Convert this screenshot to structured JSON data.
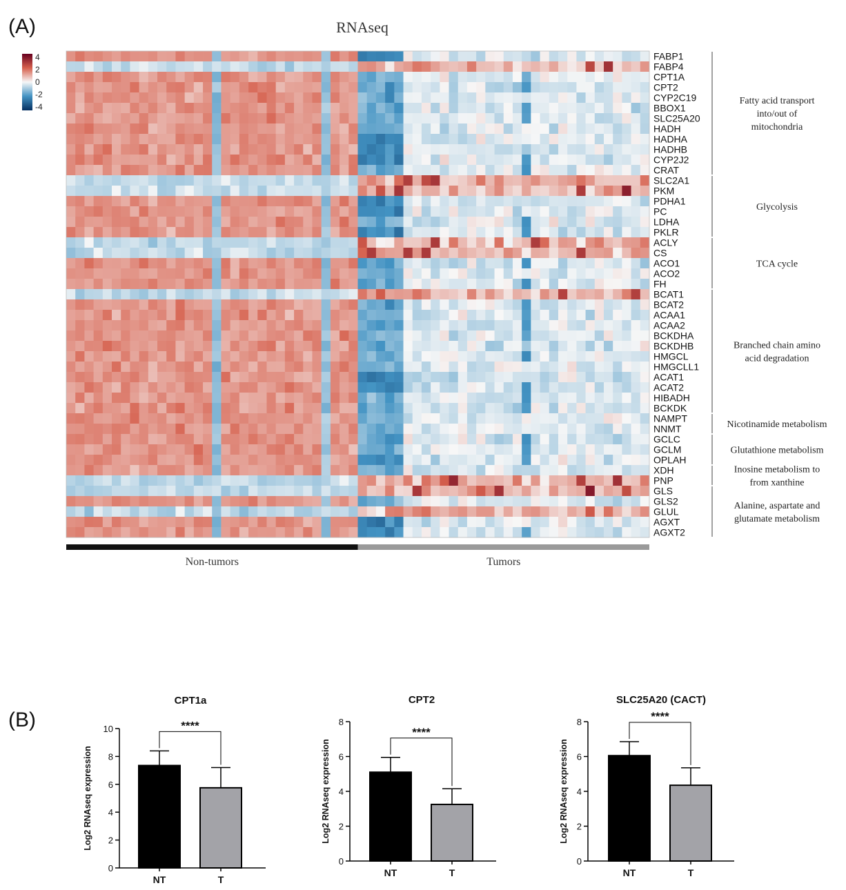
{
  "panel_labels": {
    "a": "(A)",
    "b": "(B)"
  },
  "chart_data": [
    {
      "type": "heatmap",
      "title": "RNAseq",
      "color_scale": {
        "ticks": [
          "4",
          "2",
          "0",
          "-2",
          "-4"
        ],
        "colors": {
          "max": "#67001f",
          "high": "#d6604d",
          "mid": "#f7f7f7",
          "low": "#4393c3",
          "min": "#053061"
        }
      },
      "genes": [
        "FABP1",
        "FABP4",
        "CPT1A",
        "CPT2",
        "CYP2C19",
        "BBOX1",
        "SLC25A20",
        "HADH",
        "HADHA",
        "HADHB",
        "CYP2J2",
        "CRAT",
        "SLC2A1",
        "PKM",
        "PDHA1",
        "PC",
        "LDHA",
        "PKLR",
        "ACLY",
        "CS",
        "ACO1",
        "ACO2",
        "FH",
        "BCAT1",
        "BCAT2",
        "ACAA1",
        "ACAA2",
        "BCKDHA",
        "BCKDHB",
        "HMGCL",
        "HMGCLL1",
        "ACAT1",
        "ACAT2",
        "HIBADH",
        "BCKDK",
        "NAMPT",
        "NNMT",
        "GCLC",
        "GCLM",
        "OPLAH",
        "XDH",
        "PNP",
        "GLS",
        "GLS2",
        "GLUL",
        "AGXT",
        "AGXT2"
      ],
      "groups": [
        {
          "name": "Non-tumors",
          "columns": 32,
          "color": "#111111"
        },
        {
          "name": "Tumors",
          "columns": 32,
          "color": "#9a9a9a"
        }
      ],
      "row_expression": {
        "up_in_tumors": [
          "FABP4",
          "SLC2A1",
          "PKM",
          "ACLY",
          "CS",
          "BCAT1",
          "PNP",
          "GLS",
          "GLUL"
        ],
        "strongly_down_in_tumors": [
          "FABP1",
          "CYP2J2",
          "HADHA",
          "HADHB",
          "PDHA1",
          "PC",
          "PKLR",
          "ACAT1",
          "ACAT2",
          "AGXT",
          "AGXT2",
          "OPLAH"
        ]
      },
      "pathways": [
        {
          "lines": [
            "Fatty acid transport",
            "into/out of",
            "mitochondria"
          ],
          "from": 0,
          "to": 11
        },
        {
          "lines": [
            "Glycolysis"
          ],
          "from": 12,
          "to": 17
        },
        {
          "lines": [
            "TCA cycle"
          ],
          "from": 18,
          "to": 22
        },
        {
          "lines": [
            "Branched chain amino",
            "acid degradation"
          ],
          "from": 23,
          "to": 34
        },
        {
          "lines": [
            "Nicotinamide metabolism"
          ],
          "from": 35,
          "to": 36
        },
        {
          "lines": [
            "Glutathione metabolism"
          ],
          "from": 37,
          "to": 39
        },
        {
          "lines": [
            "Inosine metabolism to",
            "from xanthine"
          ],
          "from": 40,
          "to": 41
        },
        {
          "lines": [
            "Alanine, aspartate and",
            "glutamate metabolism"
          ],
          "from": 42,
          "to": 46
        }
      ]
    },
    {
      "type": "bar",
      "title": "CPT1a",
      "categories": [
        "NT",
        "T"
      ],
      "values": [
        7.35,
        5.75
      ],
      "errors": [
        1.05,
        1.45
      ],
      "colors": [
        "#000000",
        "#a3a3a8"
      ],
      "ylabel": "Log2 RNAseq expression",
      "ylim": [
        0,
        10
      ],
      "yticks": [
        "0",
        "2",
        "4",
        "6",
        "8",
        "10"
      ],
      "significance": "****"
    },
    {
      "type": "bar",
      "title": "CPT2",
      "categories": [
        "NT",
        "T"
      ],
      "values": [
        5.1,
        3.25
      ],
      "errors": [
        0.85,
        0.9
      ],
      "colors": [
        "#000000",
        "#a3a3a8"
      ],
      "ylabel": "Log2 RNAseq expression",
      "ylim": [
        0,
        8
      ],
      "yticks": [
        "0",
        "2",
        "4",
        "6",
        "8"
      ],
      "significance": "****"
    },
    {
      "type": "bar",
      "title": "SLC25A20 (CACT)",
      "categories": [
        "NT",
        "T"
      ],
      "values": [
        6.05,
        4.35
      ],
      "errors": [
        0.8,
        1.0
      ],
      "colors": [
        "#000000",
        "#a3a3a8"
      ],
      "ylabel": "Log2 RNAseq expression",
      "ylim": [
        0,
        8
      ],
      "yticks": [
        "0",
        "2",
        "4",
        "6",
        "8"
      ],
      "significance": "****"
    }
  ]
}
